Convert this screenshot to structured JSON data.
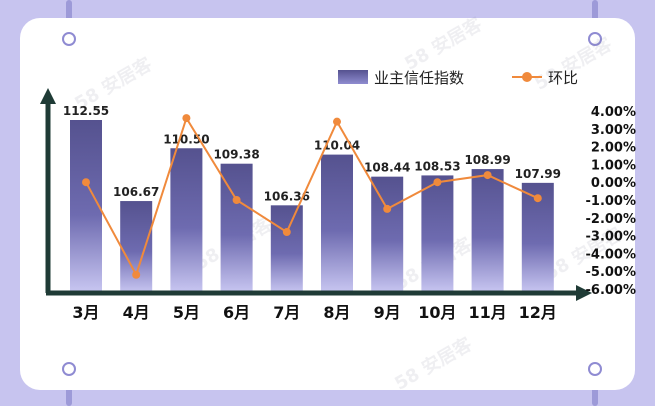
{
  "chart_data": {
    "type": "bar",
    "categories": [
      "3月",
      "4月",
      "5月",
      "6月",
      "7月",
      "8月",
      "9月",
      "10月",
      "11月",
      "12月"
    ],
    "series": [
      {
        "name": "业主信任指数",
        "type": "bar",
        "values": [
          112.55,
          106.67,
          110.5,
          109.38,
          106.36,
          110.04,
          108.44,
          108.53,
          108.99,
          107.99
        ]
      },
      {
        "name": "环比",
        "type": "line",
        "axis": "right",
        "values": [
          0.0,
          -5.2,
          3.6,
          -1.0,
          -2.8,
          3.4,
          -1.5,
          0.0,
          0.4,
          -0.9
        ]
      }
    ],
    "right_axis_ticks": [
      "4.00%",
      "3.00%",
      "2.00%",
      "1.00%",
      "0.00%",
      "-1.00%",
      "-2.00%",
      "-3.00%",
      "-4.00%",
      "-5.00%",
      "-6.00%"
    ],
    "right_ylim": [
      -6,
      4
    ],
    "legend_position": "top-right",
    "colors": {
      "bar_top": "#55528f",
      "bar_bottom": "#c9c7f2",
      "line": "#f08a3c",
      "axis": "#1f3b36"
    }
  },
  "watermark_text": "58 安居客"
}
